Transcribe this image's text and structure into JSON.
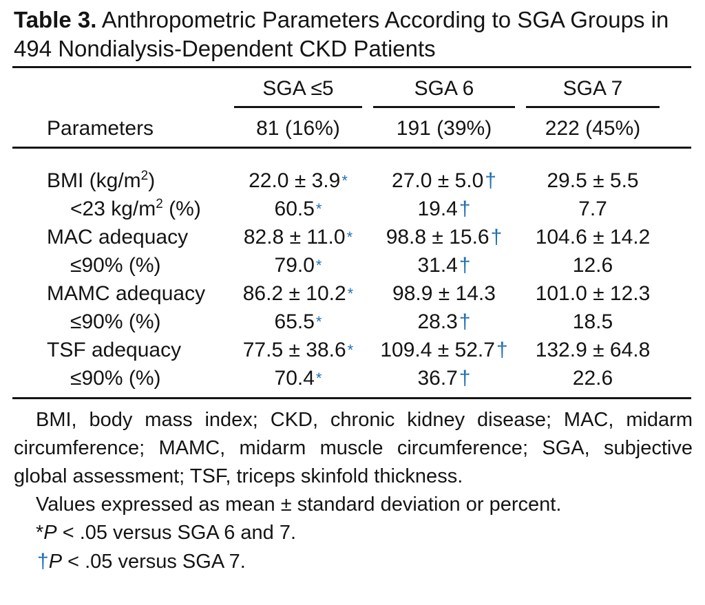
{
  "caption": {
    "label": "Table 3.",
    "text": " Anthropometric Parameters According to SGA Groups in 494 Nondialysis-Dependent CKD Patients"
  },
  "columns": [
    {
      "group": "SGA ≤5",
      "n": "81 (16%)"
    },
    {
      "group": "SGA 6",
      "n": "191 (39%)"
    },
    {
      "group": "SGA 7",
      "n": "222 (45%)"
    }
  ],
  "param_header": "Parameters",
  "rows": [
    {
      "label": "BMI (kg/m",
      "label_sup": "2",
      "label_after": ")",
      "values": [
        {
          "v": "22.0 ± 3.9",
          "m": "*"
        },
        {
          "v": "27.0 ± 5.0",
          "m": "†"
        },
        {
          "v": "29.5 ± 5.5",
          "m": ""
        }
      ]
    },
    {
      "label": "<23 kg/m",
      "label_sup": "2",
      "label_after": " (%)",
      "values": [
        {
          "v": "60.5",
          "m": "*"
        },
        {
          "v": "19.4",
          "m": "†"
        },
        {
          "v": "7.7",
          "m": ""
        }
      ]
    },
    {
      "label": "MAC adequacy",
      "label_sup": "",
      "label_after": "",
      "values": [
        {
          "v": "82.8 ± 11.0",
          "m": "*"
        },
        {
          "v": "98.8 ± 15.6",
          "m": "†"
        },
        {
          "v": "104.6 ± 14.2",
          "m": ""
        }
      ]
    },
    {
      "label": "≤90% (%)",
      "label_sup": "",
      "label_after": "",
      "values": [
        {
          "v": "79.0",
          "m": "*"
        },
        {
          "v": "31.4",
          "m": "†"
        },
        {
          "v": "12.6",
          "m": ""
        }
      ]
    },
    {
      "label": "MAMC adequacy",
      "label_sup": "",
      "label_after": "",
      "values": [
        {
          "v": "86.2 ± 10.2",
          "m": "*"
        },
        {
          "v": "98.9 ± 14.3",
          "m": ""
        },
        {
          "v": "101.0 ± 12.3",
          "m": ""
        }
      ]
    },
    {
      "label": "≤90% (%)",
      "label_sup": "",
      "label_after": "",
      "values": [
        {
          "v": "65.5",
          "m": "*"
        },
        {
          "v": "28.3",
          "m": "†"
        },
        {
          "v": "18.5",
          "m": ""
        }
      ]
    },
    {
      "label": "TSF adequacy",
      "label_sup": "",
      "label_after": "",
      "values": [
        {
          "v": "77.5 ± 38.6",
          "m": "*"
        },
        {
          "v": "109.4 ± 52.7",
          "m": "†"
        },
        {
          "v": "132.9 ± 64.8",
          "m": ""
        }
      ]
    },
    {
      "label": "≤90% (%)",
      "label_sup": "",
      "label_after": "",
      "values": [
        {
          "v": "70.4",
          "m": "*"
        },
        {
          "v": "36.7",
          "m": "†"
        },
        {
          "v": "22.6",
          "m": ""
        }
      ]
    }
  ],
  "footnotes": {
    "abbreviations": "BMI, body mass index; CKD, chronic kidney disease; MAC, midarm circumference; MAMC, midarm muscle circumference; SGA, subjective global assessment; TSF, triceps skinfold thickness.",
    "values_note": "Values expressed as mean ± standard deviation or percent.",
    "star_mark": "*",
    "star_p": "P",
    "star_rest": " < .05 versus SGA 6 and 7.",
    "dagger_mark": "†",
    "dagger_p": "P",
    "dagger_rest": " < .05 versus SGA 7."
  },
  "colors": {
    "mark": "#1f6fb0",
    "text": "#141414"
  }
}
